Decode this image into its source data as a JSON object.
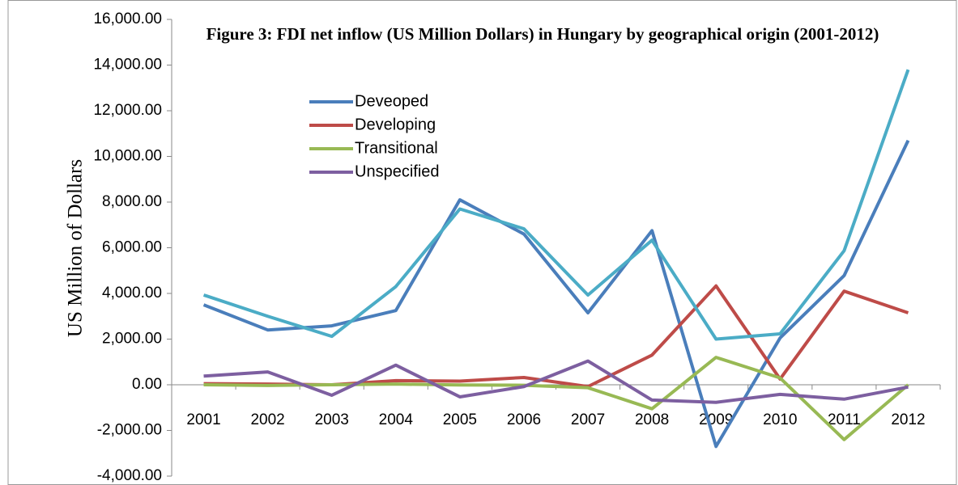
{
  "chart_data": {
    "type": "line",
    "title": "Figure 3: FDI net inflow (US Million Dollars) in Hungary by geographical origin (2001-2012)",
    "y_label": "US Million of Dollars",
    "categories": [
      "2001",
      "2002",
      "2003",
      "2004",
      "2005",
      "2006",
      "2007",
      "2008",
      "2009",
      "2010",
      "2011",
      "2012"
    ],
    "series": [
      {
        "name": "Deveoped",
        "color": "#4a7ebb",
        "values": [
          3500,
          2400,
          2580,
          3250,
          8100,
          6600,
          3150,
          6750,
          -2700,
          2050,
          4780,
          10700
        ]
      },
      {
        "name": "Developing",
        "color": "#be4b48",
        "values": [
          50,
          30,
          0,
          180,
          160,
          320,
          -80,
          1300,
          4330,
          250,
          4100,
          3150
        ]
      },
      {
        "name": "Transitional",
        "color": "#98b954",
        "values": [
          0,
          -30,
          0,
          30,
          -10,
          -20,
          -130,
          -1050,
          1200,
          300,
          -2400,
          0
        ]
      },
      {
        "name": "Unspecified",
        "color": "#7d5fa0",
        "values": [
          380,
          560,
          -460,
          860,
          -530,
          -80,
          1040,
          -670,
          -770,
          -420,
          -630,
          -100
        ]
      },
      {
        "color": "#4bacc6",
        "values": [
          3930,
          3000,
          2120,
          4300,
          7700,
          6830,
          3930,
          6330,
          2000,
          2230,
          5870,
          13800
        ]
      }
    ],
    "ylim": [
      -4000,
      16000
    ],
    "yticks": [
      {
        "value": -4000,
        "label": "-4,000.00"
      },
      {
        "value": -2000,
        "label": "-2,000.00"
      },
      {
        "value": 0,
        "label": "0.00"
      },
      {
        "value": 2000,
        "label": "2,000.00"
      },
      {
        "value": 4000,
        "label": "4,000.00"
      },
      {
        "value": 6000,
        "label": "6,000.00"
      },
      {
        "value": 8000,
        "label": "8,000.00"
      },
      {
        "value": 10000,
        "label": "10,000.00"
      },
      {
        "value": 12000,
        "label": "12,000.00"
      },
      {
        "value": 14000,
        "label": "14,000.00"
      },
      {
        "value": 16000,
        "label": "16,000.00"
      }
    ],
    "grid": false
  }
}
